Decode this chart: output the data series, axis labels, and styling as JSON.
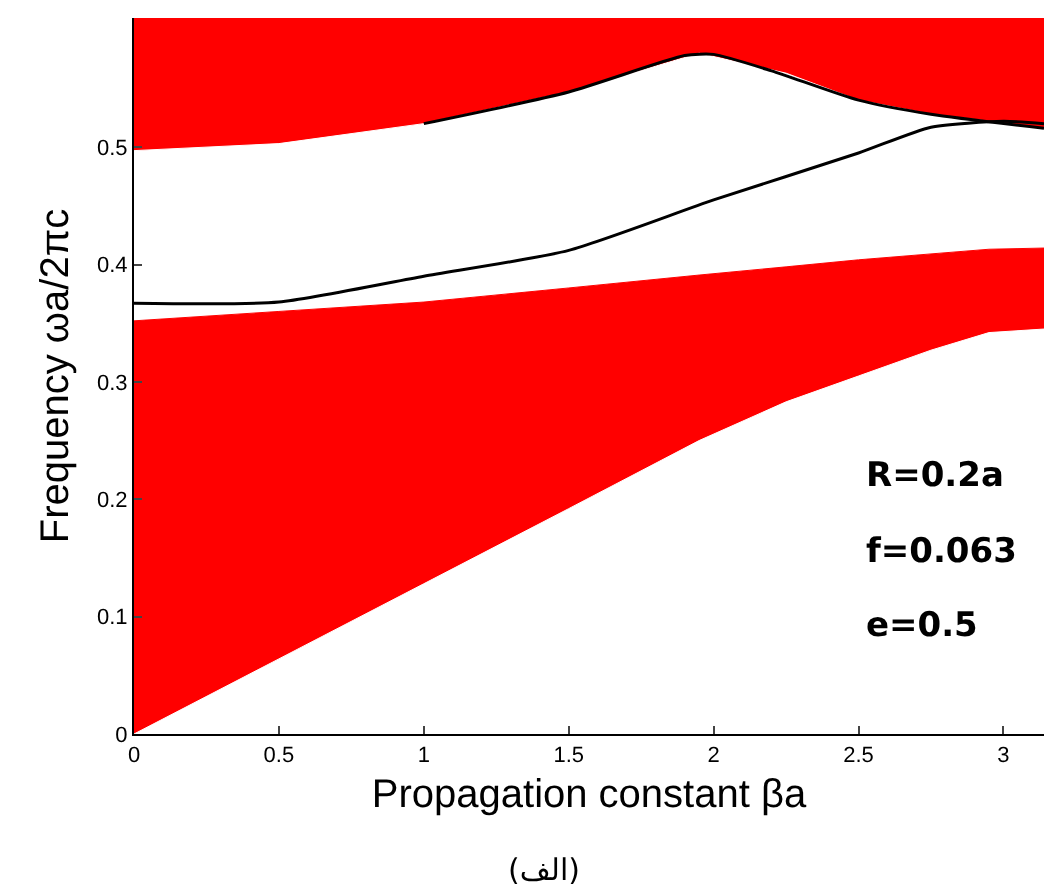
{
  "chart_data": [
    {
      "type": "area",
      "stacked": true,
      "xlabel": "Propagation constant βa",
      "ylabel": "Frequency ωa/2πc",
      "xlim": [
        0,
        3.14
      ],
      "ylim": [
        0,
        0.61
      ],
      "xticks": [
        0,
        0.5,
        1,
        1.5,
        2,
        2.5,
        3
      ],
      "yticks": [
        0,
        0.1,
        0.2,
        0.3,
        0.4,
        0.5
      ],
      "grid": false,
      "x": [
        0,
        0.5,
        1,
        1.5,
        1.95,
        2.25,
        2.5,
        2.75,
        2.95,
        3.14
      ],
      "series": [
        {
          "color": "#ffffff",
          "values": [
            0,
            0.064,
            0.128,
            0.192,
            0.25,
            0.283,
            0.305,
            0.327,
            0.342,
            0.345
          ]
        },
        {
          "color": "#ff0000",
          "values": [
            0.352,
            0.296,
            0.24,
            0.188,
            0.141,
            0.115,
            0.099,
            0.082,
            0.071,
            0.069
          ]
        },
        {
          "color": "#ffffff",
          "values": [
            0.145,
            0.143,
            0.152,
            0.167,
            0.189,
            0.165,
            0.136,
            0.119,
            0.109,
            0.102
          ]
        },
        {
          "color": "#ff0000",
          "values": [
            0.113,
            0.107,
            0.09,
            0.063,
            0.03,
            0.047,
            0.07,
            0.082,
            0.088,
            0.094
          ]
        }
      ],
      "annotations": [
        "R=0.2a",
        "f=0.063",
        "e=0.5",
        "(الف)"
      ]
    },
    {
      "type": "line",
      "xlim": [
        0,
        3.14
      ],
      "ylim": [
        0,
        0.61
      ],
      "grid": false,
      "series": [
        {
          "color": "#000000",
          "x": [
            1,
            1.5,
            1.9,
            2,
            2.2,
            2.5,
            2.75,
            3.14
          ],
          "values": [
            0.52,
            0.547,
            0.578,
            0.579,
            0.565,
            0.54,
            0.528,
            0.516
          ]
        },
        {
          "color": "#000000",
          "x": [
            0,
            0.5,
            1,
            1.5,
            2,
            2.5,
            2.75,
            3,
            3.14
          ],
          "values": [
            0.367,
            0.368,
            0.39,
            0.412,
            0.455,
            0.495,
            0.517,
            0.522,
            0.52
          ]
        }
      ]
    }
  ]
}
